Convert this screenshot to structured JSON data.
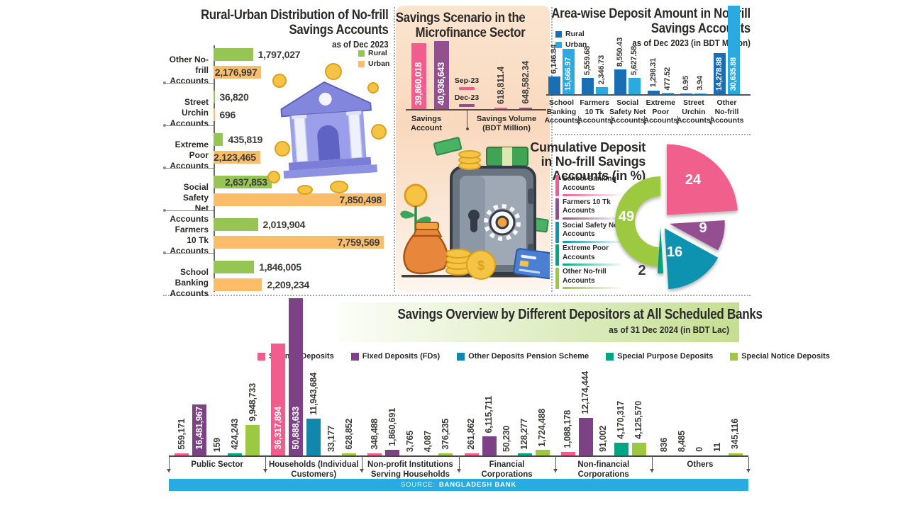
{
  "colors": {
    "text": "#2B2A29",
    "rural_green": "#97C554",
    "urban_orange": "#FBBD69",
    "rural_blue": "#1A6FB4",
    "urban_cyan": "#2BA9E1",
    "pink": "#F15E8D",
    "purple": "#93508F",
    "teal": "#0E93B0",
    "green_teal": "#00A583",
    "light_green": "#9CC940",
    "fd_purple": "#7D4285",
    "pension_blue": "#1187AD",
    "source_cyan": "#29ABE2"
  },
  "panels": {
    "rural_urban": {
      "title_lines": [
        "Rural-Urban Distribution of No-frill",
        "Savings Accounts"
      ],
      "subtitle": "as of Dec 2023"
    },
    "microfinance": {
      "title_lines": [
        "Savings Scenario in the",
        "Microfinance Sector"
      ]
    },
    "area_deposit": {
      "title_lines": [
        "Area-wise Deposit Amount in No-frill",
        "Savings Accounts"
      ],
      "subtitle": "as of Dec 2023 (in BDT Million)"
    },
    "cumulative": {
      "title_lines": [
        "Cumulative Deposit",
        "in No-frill Savings",
        "Accounts (in %)"
      ]
    },
    "overview": {
      "title": "Savings Overview by Different Depositors at All Scheduled Banks",
      "subtitle": "as of 31 Dec 2024 (in BDT Lac)"
    }
  },
  "source": {
    "prefix": "SOURCE:",
    "name": "BANGLADESH BANK"
  },
  "chart_data": [
    {
      "id": "rural_urban_distribution",
      "type": "bar",
      "orientation": "horizontal",
      "title": "Rural-Urban Distribution of No-frill Savings Accounts",
      "subtitle": "as of Dec 2023",
      "series": [
        "Rural",
        "Urban"
      ],
      "xmax": 7850498,
      "rows": [
        {
          "category": [
            "Other No-frill",
            "Accounts"
          ],
          "rural": 1797027,
          "rural_display": "1,797,027",
          "rural_label_inside": false,
          "urban": 2176997,
          "urban_display": "2,176,997",
          "urban_label_inside": true
        },
        {
          "category": [
            "Street Urchin",
            "Accounts"
          ],
          "rural": 36820,
          "rural_display": "36,820",
          "rural_label_inside": false,
          "urban": 696,
          "urban_display": "696",
          "urban_label_inside": false
        },
        {
          "category": [
            "Extreme Poor",
            "Accounts"
          ],
          "rural": 435819,
          "rural_display": "435,819",
          "rural_label_inside": false,
          "urban": 2123465,
          "urban_display": "2,123,465",
          "urban_label_inside": true
        },
        {
          "category": [
            "Social Safety",
            "Net Accounts"
          ],
          "rural": 2637853,
          "rural_display": "2,637,853",
          "rural_label_inside": true,
          "urban": 7850498,
          "urban_display": "7,850,498",
          "urban_label_inside": true
        },
        {
          "category": [
            "Farmers 10 Tk",
            "Accounts"
          ],
          "rural": 2019904,
          "rural_display": "2,019,904",
          "rural_label_inside": false,
          "urban": 7759569,
          "urban_display": "7,759,569",
          "urban_label_inside": true
        },
        {
          "category": [
            "School Banking",
            "Accounts"
          ],
          "rural": 1846005,
          "rural_display": "1,846,005",
          "rural_label_inside": false,
          "urban": 2209234,
          "urban_display": "2,209,234",
          "urban_label_inside": false
        }
      ]
    },
    {
      "id": "microfinance_scenario",
      "type": "bar",
      "title": "Savings Scenario in the Microfinance Sector",
      "legend": [
        "Sep-23",
        "Dec-23"
      ],
      "ymax": 40936643,
      "groups": [
        {
          "label": [
            "Savings",
            "Account"
          ],
          "bars": [
            {
              "series": "Sep-23",
              "value": 39860018,
              "display": "39,860,018",
              "label_inside": true
            },
            {
              "series": "Dec-23",
              "value": 40936643,
              "display": "40,936,643",
              "label_inside": true
            }
          ]
        },
        {
          "label": [
            "Savings Volume",
            "(BDT Million)"
          ],
          "bars": [
            {
              "series": "Sep-23",
              "value": 618811.4,
              "display": "618,811.4",
              "label_inside": false
            },
            {
              "series": "Dec-23",
              "value": 648582.34,
              "display": "648,582.34",
              "label_inside": false
            }
          ]
        }
      ]
    },
    {
      "id": "area_wise_deposit",
      "type": "bar",
      "title": "Area-wise Deposit Amount in No-frill Savings Accounts",
      "subtitle": "as of Dec 2023 (in BDT Million)",
      "series": [
        "Rural",
        "Urban"
      ],
      "ymax": 30635.88,
      "rows": [
        {
          "category": [
            "School",
            "Banking",
            "Accounts"
          ],
          "rural": 6146.84,
          "rural_display": "6,146.84",
          "rural_label_inside": false,
          "urban": 15666.97,
          "urban_display": "15,666.97",
          "urban_label_inside": true
        },
        {
          "category": [
            "Farmers",
            "10 Tk",
            "Accounts"
          ],
          "rural": 5559.68,
          "rural_display": "5,559.68",
          "rural_label_inside": false,
          "urban": 2346.73,
          "urban_display": "2,346.73",
          "urban_label_inside": false
        },
        {
          "category": [
            "Social",
            "Safety Net",
            "Accounts"
          ],
          "rural": 8550.43,
          "rural_display": "8,550.43",
          "rural_label_inside": false,
          "urban": 5627.58,
          "urban_display": "5,627.58",
          "urban_label_inside": false
        },
        {
          "category": [
            "Extreme",
            "Poor",
            "Accounts"
          ],
          "rural": 1298.31,
          "rural_display": "1,298.31",
          "rural_label_inside": false,
          "urban": 477.52,
          "urban_display": "477.52",
          "urban_label_inside": false
        },
        {
          "category": [
            "Street",
            "Urchin",
            "Accounts"
          ],
          "rural": 0.95,
          "rural_display": "0.95",
          "rural_label_inside": false,
          "urban": 3.94,
          "urban_display": "3.94",
          "urban_label_inside": false
        },
        {
          "category": [
            "Other",
            "No-frill",
            "Accounts"
          ],
          "rural": 14278.88,
          "rural_display": "14,278.88",
          "rural_label_inside": true,
          "urban": 30635.88,
          "urban_display": "30,635.88",
          "urban_label_inside": true
        }
      ]
    },
    {
      "id": "cumulative_deposit_share",
      "type": "pie",
      "title": "Cumulative Deposit in No-frill Savings Accounts (in %)",
      "unit": "%",
      "slices": [
        {
          "label": [
            "School Banking",
            "Accounts"
          ],
          "value": 24,
          "color": "#F15E8D"
        },
        {
          "label": [
            "Farmers 10 Tk",
            "Accounts"
          ],
          "value": 9,
          "color": "#93508F"
        },
        {
          "label": [
            "Social Safety Net",
            "Accounts"
          ],
          "value": 16,
          "color": "#0E93B0"
        },
        {
          "label": [
            "Extreme Poor",
            "Accounts"
          ],
          "value": 2,
          "color": "#00A583"
        },
        {
          "label": [
            "Other No-frill",
            "Accounts"
          ],
          "value": 49,
          "color": "#9CC940"
        }
      ]
    },
    {
      "id": "savings_overview",
      "type": "bar",
      "title": "Savings Overview by Different Depositors at All Scheduled Banks",
      "subtitle": "as of 31 Dec 2024 (in BDT Lac)",
      "series": [
        {
          "name": "Savings Deposits",
          "color": "#F15E8D"
        },
        {
          "name": "Fixed Deposits (FDs)",
          "color": "#7D4285"
        },
        {
          "name": "Other Deposits Pension Scheme",
          "color": "#1187AD"
        },
        {
          "name": "Special Purpose Deposits",
          "color": "#00A583"
        },
        {
          "name": "Special Notice Deposits",
          "color": "#9CC940"
        }
      ],
      "ymax": 50888633,
      "groups": [
        {
          "label": [
            "Public Sector"
          ],
          "values": [
            559171,
            16481967,
            159,
            424243,
            9948733
          ],
          "displays": [
            "559,171",
            "16,481,967",
            "159",
            "424,243",
            "9,948,733"
          ],
          "label_inside": [
            false,
            true,
            false,
            false,
            false
          ]
        },
        {
          "label": [
            "Households (Individual",
            "Customers)"
          ],
          "values": [
            36317894,
            50888633,
            11943684,
            33177,
            628852
          ],
          "displays": [
            "36,317,894",
            "50,888,633",
            "11,943,684",
            "33,177",
            "628,852"
          ],
          "label_inside": [
            true,
            true,
            false,
            false,
            false
          ]
        },
        {
          "label": [
            "Non-profit Institutions",
            "Serving Households"
          ],
          "values": [
            348488,
            1860691,
            3765,
            4087,
            376235
          ],
          "displays": [
            "348,488",
            "1,860,691",
            "3,765",
            "4,087",
            "376,235"
          ],
          "label_inside": [
            false,
            false,
            false,
            false,
            false
          ]
        },
        {
          "label": [
            "Financial",
            "Corporations"
          ],
          "values": [
            261862,
            6115711,
            50230,
            128277,
            1724488
          ],
          "displays": [
            "261,862",
            "6,115,711",
            "50,230",
            "128,277",
            "1,724,488"
          ],
          "label_inside": [
            false,
            false,
            false,
            false,
            false
          ]
        },
        {
          "label": [
            "Non-financial",
            "Corporations"
          ],
          "values": [
            1088178,
            12174444,
            91002,
            4170317,
            4125570
          ],
          "displays": [
            "1,088,178",
            "12,174,444",
            "91,002",
            "4,170,317",
            "4,125,570"
          ],
          "label_inside": [
            false,
            false,
            false,
            false,
            false
          ]
        },
        {
          "label": [
            "Others"
          ],
          "values": [
            836,
            8485,
            0,
            11,
            345116
          ],
          "displays": [
            "836",
            "8,485",
            "0",
            "11",
            "345,116"
          ],
          "label_inside": [
            false,
            false,
            false,
            false,
            false
          ]
        }
      ]
    }
  ]
}
